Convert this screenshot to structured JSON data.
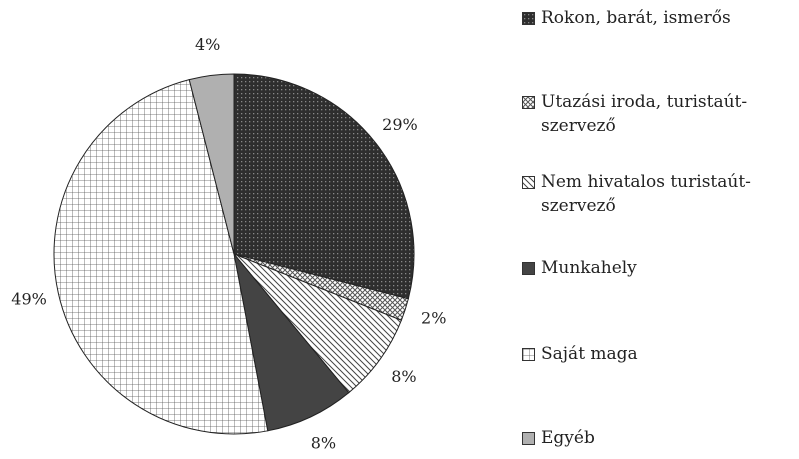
{
  "chart_data": {
    "type": "pie",
    "categories": [
      "Rokon, barát, ismerős",
      "Utazási iroda, turistaút-szervező",
      "Nem hivatalos turistaút-szervező",
      "Munkahely",
      "Saját maga",
      "Egyéb"
    ],
    "values": [
      29,
      2,
      8,
      8,
      49,
      4
    ],
    "value_labels": [
      "29%",
      "2%",
      "8%",
      "8%",
      "49%",
      "4%"
    ],
    "colors": [
      "#3a3a3a",
      "#9a9a9a",
      "#ffffff",
      "#444444",
      "#ffffff",
      "#b0b0b0"
    ],
    "patterns": [
      "dots",
      "crosshatch",
      "diagonal",
      "solid",
      "grid",
      "solid"
    ]
  }
}
